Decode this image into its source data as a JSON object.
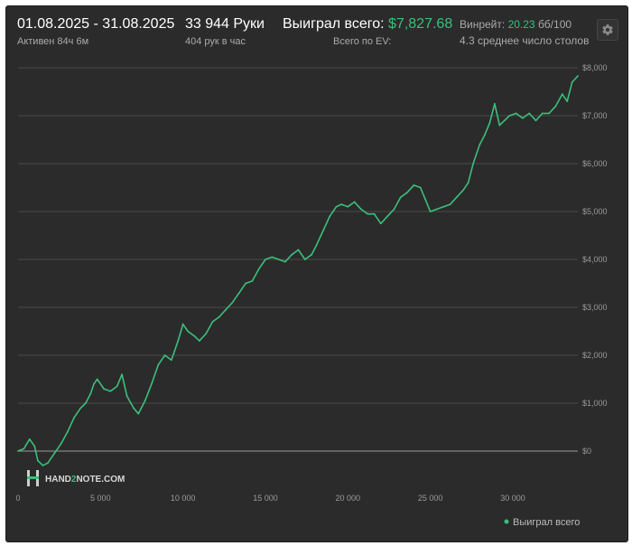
{
  "header": {
    "date_range": "01.08.2025 - 31.08.2025",
    "active": "Активен 84ч 6м",
    "hands": "33 944 Руки",
    "hands_per_hour": "404 рук в час",
    "won_total_label": "Выиграл всего:",
    "won_total_value": "$7,827.68",
    "ev_total_label": "Всего по EV:",
    "winrate_label": "Винрейт:",
    "winrate_value": "20.23",
    "winrate_unit": "бб/100",
    "avg_tables": "4.3 среднее число столов"
  },
  "watermark": {
    "text_a": "HAND",
    "text_b": "2",
    "text_c": "NOTE.COM"
  },
  "colors": {
    "line": "#3bbf7c",
    "background": "#2b2b2b",
    "grid": "#4a4a4a"
  },
  "icons": {
    "settings": "gear-icon"
  },
  "chart_data": {
    "type": "line",
    "xlabel": "",
    "ylabel": "",
    "xlim": [
      0,
      33944
    ],
    "ylim": [
      -1000,
      8000
    ],
    "x_ticks": [
      0,
      5000,
      10000,
      15000,
      20000,
      25000,
      30000
    ],
    "x_tick_labels": [
      "0",
      "5 000",
      "10 000",
      "15 000",
      "20 000",
      "25 000",
      "30 000"
    ],
    "y_ticks": [
      0,
      1000,
      2000,
      3000,
      4000,
      5000,
      6000,
      7000,
      8000
    ],
    "y_tick_labels": [
      "$0",
      "$1,000",
      "$2,000",
      "$3,000",
      "$4,000",
      "$5,000",
      "$6,000",
      "$7,000",
      "$8,000"
    ],
    "grid": true,
    "legend": "bottom-right",
    "series": [
      {
        "name": "Выиграл всего",
        "points": [
          [
            0,
            0
          ],
          [
            350,
            50
          ],
          [
            700,
            250
          ],
          [
            1000,
            100
          ],
          [
            1200,
            -200
          ],
          [
            1500,
            -300
          ],
          [
            1800,
            -250
          ],
          [
            2200,
            -50
          ],
          [
            2600,
            150
          ],
          [
            3000,
            400
          ],
          [
            3400,
            700
          ],
          [
            3800,
            900
          ],
          [
            4100,
            1000
          ],
          [
            4400,
            1200
          ],
          [
            4600,
            1400
          ],
          [
            4800,
            1500
          ],
          [
            5200,
            1300
          ],
          [
            5600,
            1250
          ],
          [
            6000,
            1350
          ],
          [
            6300,
            1600
          ],
          [
            6600,
            1150
          ],
          [
            7000,
            900
          ],
          [
            7300,
            780
          ],
          [
            7700,
            1050
          ],
          [
            8100,
            1400
          ],
          [
            8500,
            1800
          ],
          [
            8900,
            2000
          ],
          [
            9300,
            1900
          ],
          [
            9700,
            2300
          ],
          [
            10000,
            2650
          ],
          [
            10300,
            2500
          ],
          [
            10700,
            2400
          ],
          [
            11000,
            2300
          ],
          [
            11400,
            2450
          ],
          [
            11800,
            2700
          ],
          [
            12200,
            2800
          ],
          [
            12600,
            2950
          ],
          [
            13000,
            3100
          ],
          [
            13400,
            3300
          ],
          [
            13800,
            3500
          ],
          [
            14200,
            3550
          ],
          [
            14600,
            3800
          ],
          [
            15000,
            4000
          ],
          [
            15400,
            4050
          ],
          [
            15800,
            4000
          ],
          [
            16200,
            3950
          ],
          [
            16600,
            4100
          ],
          [
            17000,
            4200
          ],
          [
            17400,
            4000
          ],
          [
            17800,
            4100
          ],
          [
            18100,
            4300
          ],
          [
            18500,
            4600
          ],
          [
            18900,
            4900
          ],
          [
            19300,
            5100
          ],
          [
            19600,
            5150
          ],
          [
            20000,
            5100
          ],
          [
            20400,
            5200
          ],
          [
            20800,
            5050
          ],
          [
            21200,
            4950
          ],
          [
            21600,
            4950
          ],
          [
            22000,
            4750
          ],
          [
            22400,
            4900
          ],
          [
            22800,
            5050
          ],
          [
            23200,
            5300
          ],
          [
            23600,
            5400
          ],
          [
            24000,
            5550
          ],
          [
            24400,
            5500
          ],
          [
            24700,
            5250
          ],
          [
            25000,
            5000
          ],
          [
            25400,
            5050
          ],
          [
            25800,
            5100
          ],
          [
            26200,
            5150
          ],
          [
            26600,
            5300
          ],
          [
            27000,
            5450
          ],
          [
            27300,
            5600
          ],
          [
            27600,
            6000
          ],
          [
            28000,
            6400
          ],
          [
            28300,
            6600
          ],
          [
            28600,
            6850
          ],
          [
            28900,
            7250
          ],
          [
            29200,
            6800
          ],
          [
            29500,
            6900
          ],
          [
            29800,
            7000
          ],
          [
            30200,
            7050
          ],
          [
            30600,
            6950
          ],
          [
            31000,
            7050
          ],
          [
            31400,
            6900
          ],
          [
            31800,
            7050
          ],
          [
            32200,
            7050
          ],
          [
            32600,
            7200
          ],
          [
            33000,
            7450
          ],
          [
            33300,
            7300
          ],
          [
            33600,
            7700
          ],
          [
            33944,
            7828
          ]
        ]
      }
    ]
  }
}
